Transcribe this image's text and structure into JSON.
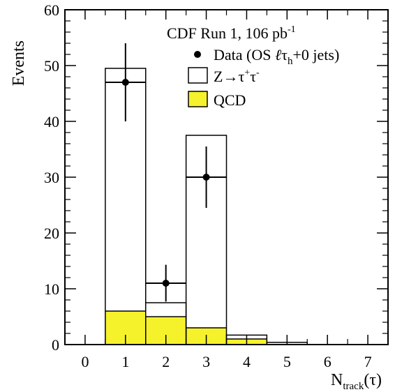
{
  "chart_data": {
    "type": "bar",
    "title": "",
    "xlabel": "N",
    "xlabel_sub": "track",
    "xlabel_suffix": "(τ)",
    "ylabel": "Events",
    "xlim": [
      -0.5,
      7.5
    ],
    "ylim": [
      0,
      60
    ],
    "x_ticks": [
      "0",
      "1",
      "2",
      "3",
      "4",
      "5",
      "6",
      "7"
    ],
    "y_ticks": [
      "0",
      "10",
      "20",
      "30",
      "40",
      "50",
      "60"
    ],
    "grid": false,
    "legend_position": "top-right",
    "legend": {
      "header": {
        "text": "CDF Run 1, 106 pb",
        "sup": "-1"
      },
      "data": {
        "pre": "Data (OS ",
        "script_l": "ℓ",
        "tau": "τ",
        "tau_sub": "h",
        "post": "+0 jets)"
      },
      "ztautau": {
        "pre": "Z→τ",
        "sup1": "+",
        "mid": "τ",
        "sup2": "-"
      },
      "qcd": "QCD"
    },
    "categories": [
      0,
      1,
      2,
      3,
      4,
      5,
      6,
      7
    ],
    "series": [
      {
        "name": "QCD",
        "values": [
          0,
          6,
          5,
          3,
          1,
          0,
          0,
          0
        ],
        "color": "#f5f22c"
      },
      {
        "name": "Z→τ+τ-",
        "stack_total": [
          0,
          49.5,
          7.5,
          37.5,
          1.7,
          0.4,
          0,
          0
        ],
        "color": "#ffffff"
      },
      {
        "name": "Data (OS ℓτh+0 jets)",
        "points": [
          {
            "x": 1,
            "y": 47,
            "err_low": 7,
            "err_high": 7
          },
          {
            "x": 2,
            "y": 11,
            "err_low": 3.3,
            "err_high": 3.3
          },
          {
            "x": 3,
            "y": 30,
            "err_low": 5.5,
            "err_high": 5.5
          }
        ]
      }
    ]
  },
  "colors": {
    "qcd_fill": "#f5f22c",
    "axis": "#000000"
  }
}
